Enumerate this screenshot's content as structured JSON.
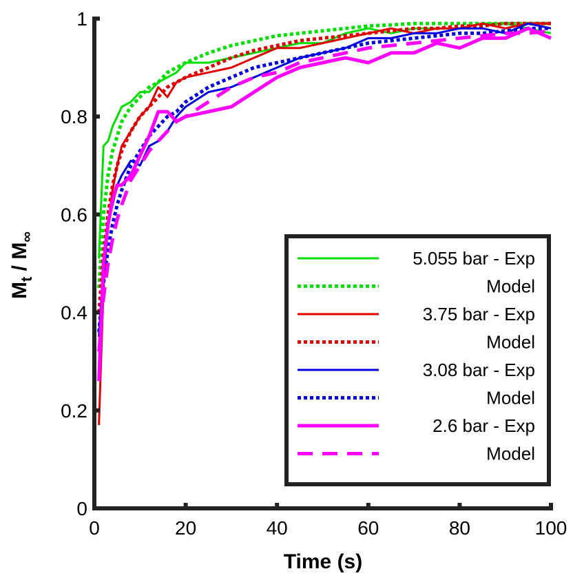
{
  "chart_data": {
    "type": "line",
    "xlabel": "Time (s)",
    "ylabel": [
      "M",
      "t",
      " / M",
      "∞"
    ],
    "x": [
      1,
      2,
      3,
      4,
      5,
      6,
      8,
      10,
      12,
      14,
      16,
      18,
      20,
      25,
      30,
      35,
      40,
      45,
      50,
      55,
      60,
      65,
      70,
      75,
      80,
      85,
      90,
      95,
      100
    ],
    "xlim": [
      0,
      100
    ],
    "xticks": [
      0,
      20,
      40,
      60,
      80,
      100
    ],
    "ylim": [
      0,
      1
    ],
    "yticks": [
      0,
      0.2,
      0.4,
      0.6,
      0.8,
      1
    ],
    "legend": "lower right",
    "series": [
      {
        "name": "5.055 bar - Exp",
        "color": "#00e000",
        "line_style": "solid",
        "values": [
          0.51,
          0.74,
          0.75,
          0.78,
          0.8,
          0.82,
          0.83,
          0.85,
          0.85,
          0.87,
          0.88,
          0.89,
          0.91,
          0.91,
          0.92,
          0.93,
          0.94,
          0.95,
          0.95,
          0.97,
          0.98,
          0.97,
          0.98,
          0.98,
          0.98,
          0.99,
          0.99,
          0.98,
          0.97
        ]
      },
      {
        "name": "Model",
        "color": "#00e000",
        "line_style": "dotted",
        "values": [
          0.45,
          0.6,
          0.68,
          0.73,
          0.76,
          0.79,
          0.82,
          0.84,
          0.86,
          0.87,
          0.89,
          0.9,
          0.91,
          0.93,
          0.945,
          0.955,
          0.965,
          0.97,
          0.975,
          0.98,
          0.985,
          0.987,
          0.99,
          0.99,
          0.99,
          0.99,
          0.99,
          0.99,
          0.99
        ]
      },
      {
        "name": "3.75 bar - Exp",
        "color": "#e00000",
        "line_style": "solid",
        "values": [
          0.17,
          0.45,
          0.58,
          0.65,
          0.7,
          0.74,
          0.77,
          0.8,
          0.82,
          0.86,
          0.84,
          0.87,
          0.88,
          0.89,
          0.9,
          0.92,
          0.94,
          0.94,
          0.95,
          0.96,
          0.97,
          0.98,
          0.97,
          0.98,
          0.98,
          0.99,
          0.98,
          0.99,
          0.99
        ]
      },
      {
        "name": "Model",
        "color": "#e00000",
        "line_style": "dotted",
        "values": [
          0.4,
          0.52,
          0.6,
          0.66,
          0.7,
          0.73,
          0.77,
          0.8,
          0.82,
          0.84,
          0.86,
          0.87,
          0.88,
          0.9,
          0.92,
          0.935,
          0.945,
          0.955,
          0.96,
          0.965,
          0.97,
          0.975,
          0.98,
          0.98,
          0.985,
          0.985,
          0.99,
          0.99,
          0.99
        ]
      },
      {
        "name": "3.08 bar - Exp",
        "color": "#0000e0",
        "line_style": "solid",
        "values": [
          0.35,
          0.5,
          0.58,
          0.62,
          0.66,
          0.68,
          0.71,
          0.7,
          0.74,
          0.75,
          0.77,
          0.8,
          0.82,
          0.85,
          0.86,
          0.88,
          0.9,
          0.92,
          0.93,
          0.94,
          0.96,
          0.96,
          0.97,
          0.97,
          0.98,
          0.98,
          0.97,
          0.99,
          0.98
        ]
      },
      {
        "name": "Model",
        "color": "#0000e0",
        "line_style": "dotted",
        "values": [
          0.36,
          0.46,
          0.53,
          0.58,
          0.62,
          0.65,
          0.7,
          0.73,
          0.76,
          0.78,
          0.8,
          0.81,
          0.83,
          0.86,
          0.88,
          0.9,
          0.91,
          0.92,
          0.93,
          0.94,
          0.95,
          0.955,
          0.96,
          0.965,
          0.97,
          0.97,
          0.975,
          0.98,
          0.98
        ]
      },
      {
        "name": "2.6 bar - Exp",
        "color": "#ff00ff",
        "line_style": "solid-thick",
        "values": [
          0.26,
          0.5,
          0.58,
          0.63,
          0.66,
          0.66,
          0.68,
          0.72,
          0.76,
          0.81,
          0.81,
          0.79,
          0.8,
          0.81,
          0.82,
          0.85,
          0.88,
          0.9,
          0.91,
          0.92,
          0.91,
          0.93,
          0.93,
          0.95,
          0.94,
          0.96,
          0.96,
          0.98,
          0.96
        ]
      },
      {
        "name": "Model",
        "color": "#ff00ff",
        "line_style": "dashed",
        "values": [
          0.32,
          0.43,
          0.5,
          0.55,
          0.59,
          0.62,
          0.67,
          0.7,
          0.73,
          0.75,
          0.77,
          0.79,
          0.8,
          0.83,
          0.86,
          0.88,
          0.89,
          0.91,
          0.92,
          0.93,
          0.94,
          0.945,
          0.95,
          0.955,
          0.96,
          0.965,
          0.97,
          0.97,
          0.975
        ]
      }
    ]
  }
}
